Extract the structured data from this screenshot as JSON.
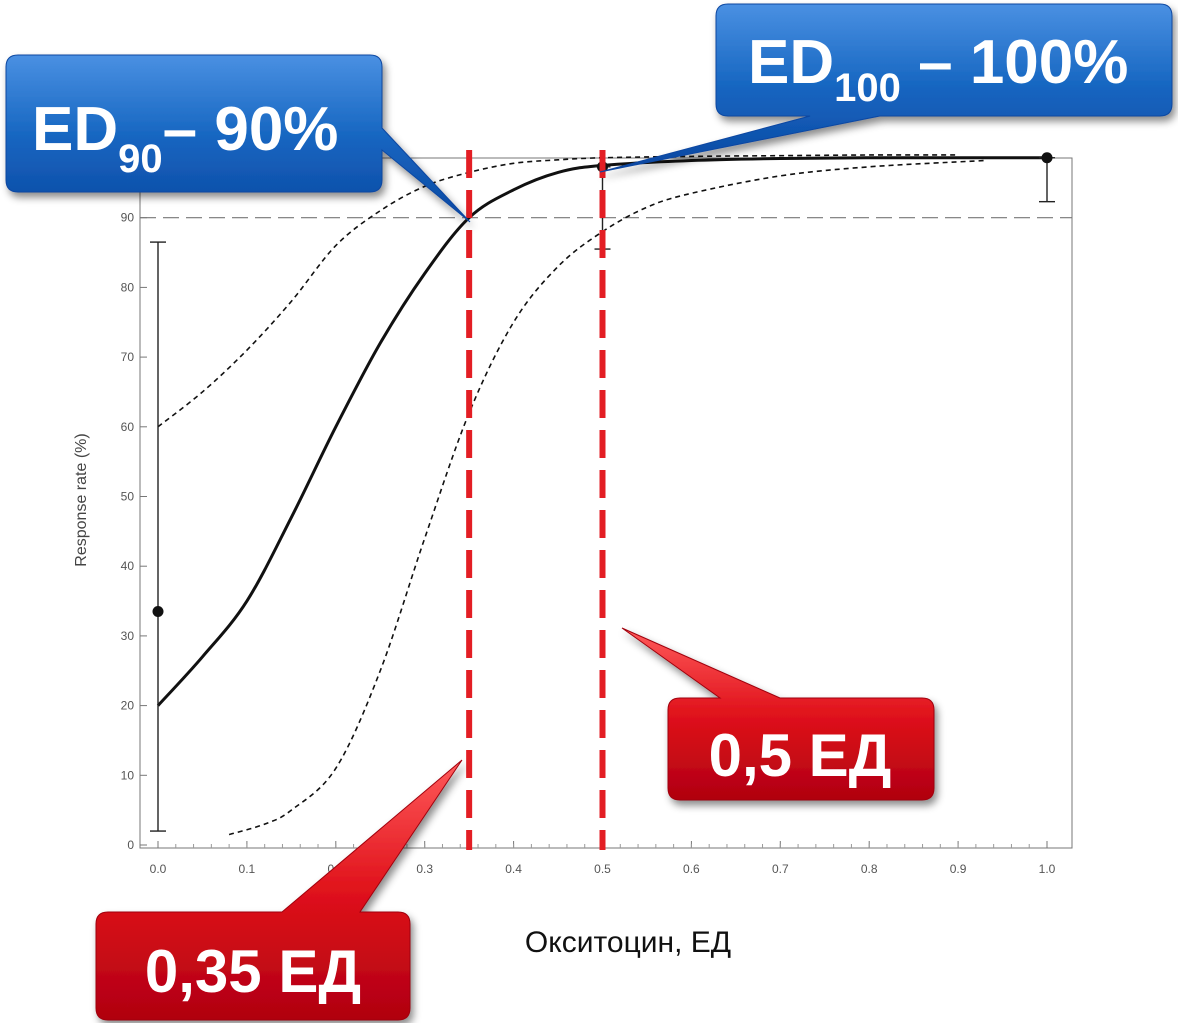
{
  "chart_data": {
    "type": "line",
    "xlabel": "Окситоцин, ЕД",
    "ylabel": "Response rate (%)",
    "xlim": [
      0.0,
      1.0
    ],
    "ylim": [
      0,
      100
    ],
    "x_ticks": [
      "0.0",
      "0.1",
      "0.2",
      "0.3",
      "0.4",
      "0.5",
      "0.6",
      "0.7",
      "0.8",
      "0.9",
      "1.0"
    ],
    "y_ticks": [
      "0",
      "10",
      "20",
      "30",
      "40",
      "50",
      "60",
      "70",
      "80",
      "90"
    ],
    "grid": false,
    "reference_line_y": 90,
    "series": [
      {
        "style": "solid",
        "x": [
          0.0,
          0.05,
          0.1,
          0.15,
          0.2,
          0.25,
          0.3,
          0.35,
          0.4,
          0.45,
          0.5,
          0.6,
          0.7,
          0.8,
          0.9,
          1.0
        ],
        "y": [
          20,
          27,
          35,
          47,
          60,
          72,
          82,
          90,
          94,
          96.5,
          97.5,
          98.2,
          98.5,
          98.6,
          98.6,
          98.6
        ]
      },
      {
        "style": "dashed",
        "x": [
          0.0,
          0.05,
          0.1,
          0.15,
          0.2,
          0.25,
          0.3,
          0.35,
          0.4,
          0.45,
          0.5,
          0.6,
          0.7,
          0.8,
          0.9
        ],
        "y": [
          60,
          65,
          71,
          78,
          86,
          91,
          94.5,
          96.5,
          97.8,
          98.3,
          98.6,
          98.8,
          98.9,
          99.0,
          99.0
        ]
      },
      {
        "style": "dashed",
        "x": [
          0.08,
          0.12,
          0.15,
          0.2,
          0.25,
          0.3,
          0.35,
          0.4,
          0.45,
          0.5,
          0.55,
          0.6,
          0.7,
          0.8,
          0.93
        ],
        "y": [
          1.5,
          3,
          5,
          11,
          25,
          44,
          62,
          75,
          83,
          88,
          91.5,
          93.5,
          96,
          97.3,
          98.2
        ]
      }
    ],
    "points": [
      {
        "x": 0.0,
        "y": 33.5,
        "err_low": 2,
        "err_high": 86.5
      },
      {
        "x": 0.5,
        "y": 97.3,
        "err_low": 85.5,
        "err_high": 97.3
      },
      {
        "x": 1.0,
        "y": 98.6,
        "err_low": 92.3,
        "err_high": 98.6
      }
    ],
    "vlines": [
      {
        "x": 0.35,
        "color": "#e31e24"
      },
      {
        "x": 0.5,
        "color": "#e31e24"
      }
    ]
  },
  "callouts": {
    "ed90": {
      "main": "ED",
      "sub": "90",
      "rest": "– 90%"
    },
    "ed100": {
      "main": "ED",
      "sub": "100",
      "rest": " – 100%"
    },
    "dose035": "0,35 ЕД",
    "dose05": "0,5 ЕД"
  },
  "colors": {
    "blue_callout": "#1565c0",
    "red_callout": "#e0121b",
    "red_line": "#e31e24"
  }
}
